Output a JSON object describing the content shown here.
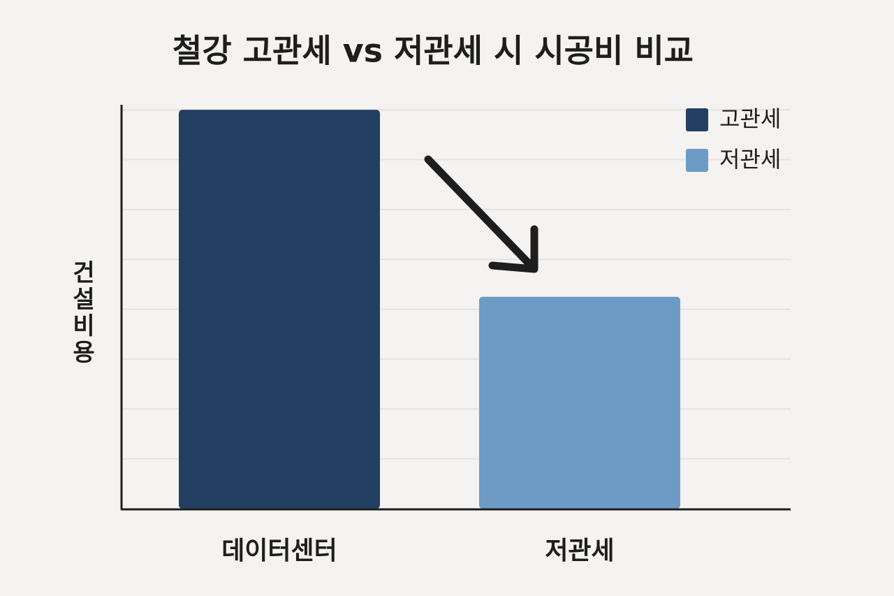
{
  "chart_data": {
    "type": "bar",
    "title": "철강 고관세 vs 저관세 시 시공비 비교",
    "y_label": "건설비용",
    "categories": [
      "데이터센터",
      "저관세"
    ],
    "series": [
      {
        "name": "고관세",
        "color": "#233f62",
        "values": [
          8,
          null
        ]
      },
      {
        "name": "저관세",
        "color": "#6d9bc5",
        "values": [
          null,
          4.25
        ]
      }
    ],
    "ylim": [
      0,
      8.1
    ],
    "yticks": [
      1,
      2,
      3,
      4,
      5,
      6,
      7,
      8
    ],
    "grid": true,
    "legend": "top-right"
  }
}
